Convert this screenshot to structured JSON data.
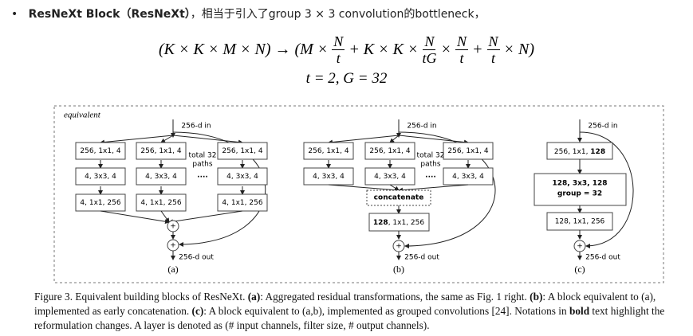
{
  "bullet": {
    "title": "ResNeXt Block（ResNeXt）",
    "text": "，相当于引入了group 3 × 3 convolution的bottleneck，"
  },
  "formula": {
    "line1": [
      "(K × K × M × N) → (M ×",
      {
        "num": "N",
        "den": "t"
      },
      "+ K × K ×",
      {
        "num": "N",
        "den": "tG"
      },
      "×",
      {
        "num": "N",
        "den": "t"
      },
      "+",
      {
        "num": "N",
        "den": "t"
      },
      "× N)"
    ],
    "line2": "t = 2,  G = 32"
  },
  "figure": {
    "label": "equivalent",
    "a": {
      "input": "256-d in",
      "row1": [
        "256, 1x1, 4",
        "256, 1x1, 4",
        "256, 1x1, 4"
      ],
      "row2": [
        "4, 3x3, 4",
        "4, 3x3, 4",
        "4, 3x3, 4"
      ],
      "row3": [
        "4, 1x1, 256",
        "4, 1x1, 256",
        "4, 1x1, 256"
      ],
      "paths": [
        "total 32",
        "paths"
      ],
      "dots": "....",
      "plus": [
        "+",
        "+"
      ],
      "output": "256-d out",
      "caption": "(a)"
    },
    "b": {
      "input": "256-d in",
      "row1": [
        "256, 1x1, 4",
        "256, 1x1, 4",
        "256, 1x1, 4"
      ],
      "row2": [
        "4, 3x3, 4",
        "4, 3x3, 4",
        "4, 3x3, 4"
      ],
      "paths": [
        "total 32",
        "paths"
      ],
      "dots": "....",
      "concat": "concatenate",
      "box": [
        "128",
        ", 1x1, 256"
      ],
      "plus": "+",
      "output": "256-d out",
      "caption": "(b)"
    },
    "c": {
      "input": "256-d in",
      "box1": [
        "256, 1x1, ",
        "128"
      ],
      "box2": [
        "128, 3x3, 128",
        "group = 32"
      ],
      "box3": "128, 1x1, 256",
      "plus": "+",
      "output": "256-d out",
      "caption": "(c)"
    }
  },
  "caption": [
    "Figure 3. Equivalent building blocks of ResNeXt. ",
    "(a)",
    ": Aggregated residual transformations, the same as Fig. 1 right. ",
    "(b)",
    ": A block equivalent to (a), implemented as early concatenation. ",
    "(c)",
    ": A block equivalent to (a,b), implemented as grouped convolutions [24]. Notations in ",
    "bold",
    " text highlight the reformulation changes. A layer is denoted as (# input channels, filter size, # output channels)."
  ]
}
